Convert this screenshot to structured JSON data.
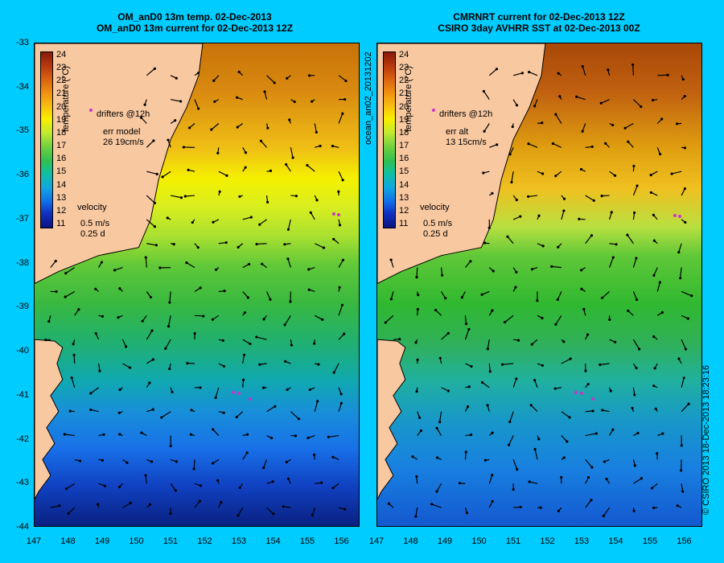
{
  "left_panel": {
    "title_line1": "OM_anD0 13m temp. 02-Dec-2013",
    "title_line2": "OM_anD0 13m current for 02-Dec-2013 12Z",
    "legend": {
      "drifters": "drifters @12h",
      "err_label": "err model",
      "err_value": "26 19cm/s",
      "velocity": "velocity",
      "scale_speed": "0.5 m/s",
      "scale_time": "0.25 d"
    }
  },
  "right_panel": {
    "title_line1": "CMRNRT current for 02-Dec-2013 12Z",
    "title_line2": "CSIRO 3day AVHRR SST at 02-Dec-2013 00Z",
    "legend": {
      "drifters": "drifters @12h",
      "err_label": "err alt",
      "err_value": "13 15cm/s",
      "velocity": "velocity",
      "scale_speed": "0.5 m/s",
      "scale_time": "0.25 d"
    }
  },
  "colorbar": {
    "label": "temperature (°C)",
    "ticks": [
      "24",
      "23",
      "22",
      "21",
      "20",
      "19",
      "18",
      "17",
      "16",
      "15",
      "14",
      "13",
      "12",
      "11"
    ]
  },
  "y_ticks": [
    "-33",
    "-34",
    "-35",
    "-36",
    "-37",
    "-38",
    "-39",
    "-40",
    "-41",
    "-42",
    "-43",
    "-44"
  ],
  "x_ticks": [
    "147",
    "148",
    "149",
    "150",
    "151",
    "152",
    "153",
    "154",
    "155",
    "156"
  ],
  "side_label": "ocean_an02_20131202",
  "copyright": "© CSIRO 2013   18-Dec-2013 18:23:16",
  "colors": {
    "background": "#00ccff",
    "land": "#f8c8a0",
    "drifters": "#cc33cc",
    "arrows": "#000000"
  }
}
